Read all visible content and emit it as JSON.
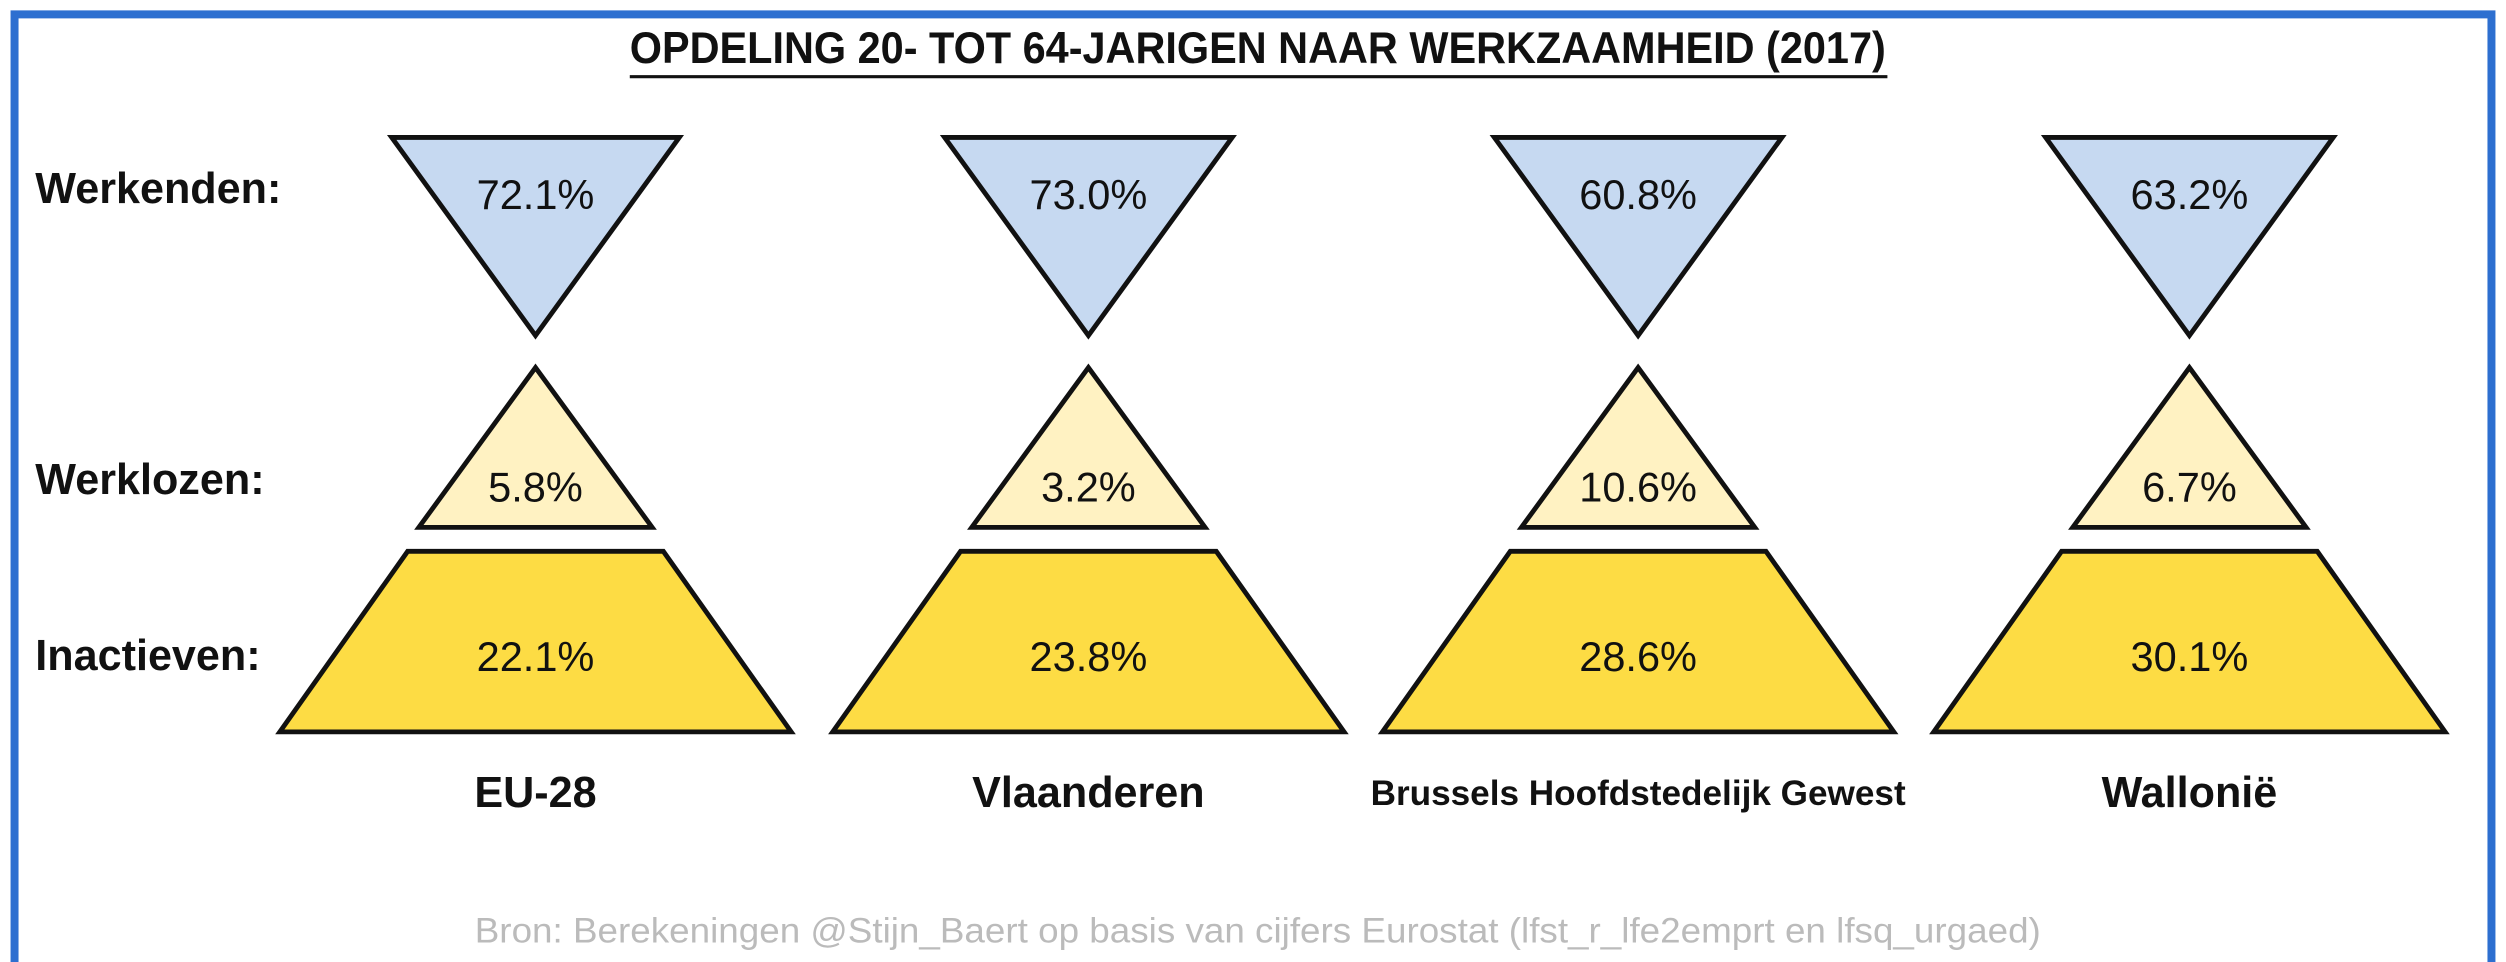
{
  "chart_data": {
    "type": "triangle",
    "title": "OPDELING 20- TOT 64-JARIGEN NAAR WERKZAAMHEID (2017)",
    "categories": [
      "EU-28",
      "Vlaanderen",
      "Brussels Hoofdstedelijk Gewest",
      "Wallonië"
    ],
    "series": [
      {
        "name": "Werkenden:",
        "color": "#c6d9f1",
        "values": [
          72.1,
          73.0,
          60.8,
          63.2
        ],
        "value_labels": [
          "72.1%",
          "73.0%",
          "60.8%",
          "63.2%"
        ]
      },
      {
        "name": "Werklozen:",
        "color": "#fff2c2",
        "values": [
          5.8,
          3.2,
          10.6,
          6.7
        ],
        "value_labels": [
          "5.8%",
          "3.2%",
          "10.6%",
          "6.7%"
        ]
      },
      {
        "name": "Inactieven:",
        "color": "#fddc44",
        "values": [
          22.1,
          23.8,
          28.6,
          30.1
        ],
        "value_labels": [
          "22.1%",
          "23.8%",
          "28.6%",
          "30.1%"
        ]
      }
    ],
    "source": "Bron: Berekeningen @Stijn_Baert op basis van cijfers Eurostat (lfst_r_lfe2emprt en lfsq_urgaed)"
  }
}
